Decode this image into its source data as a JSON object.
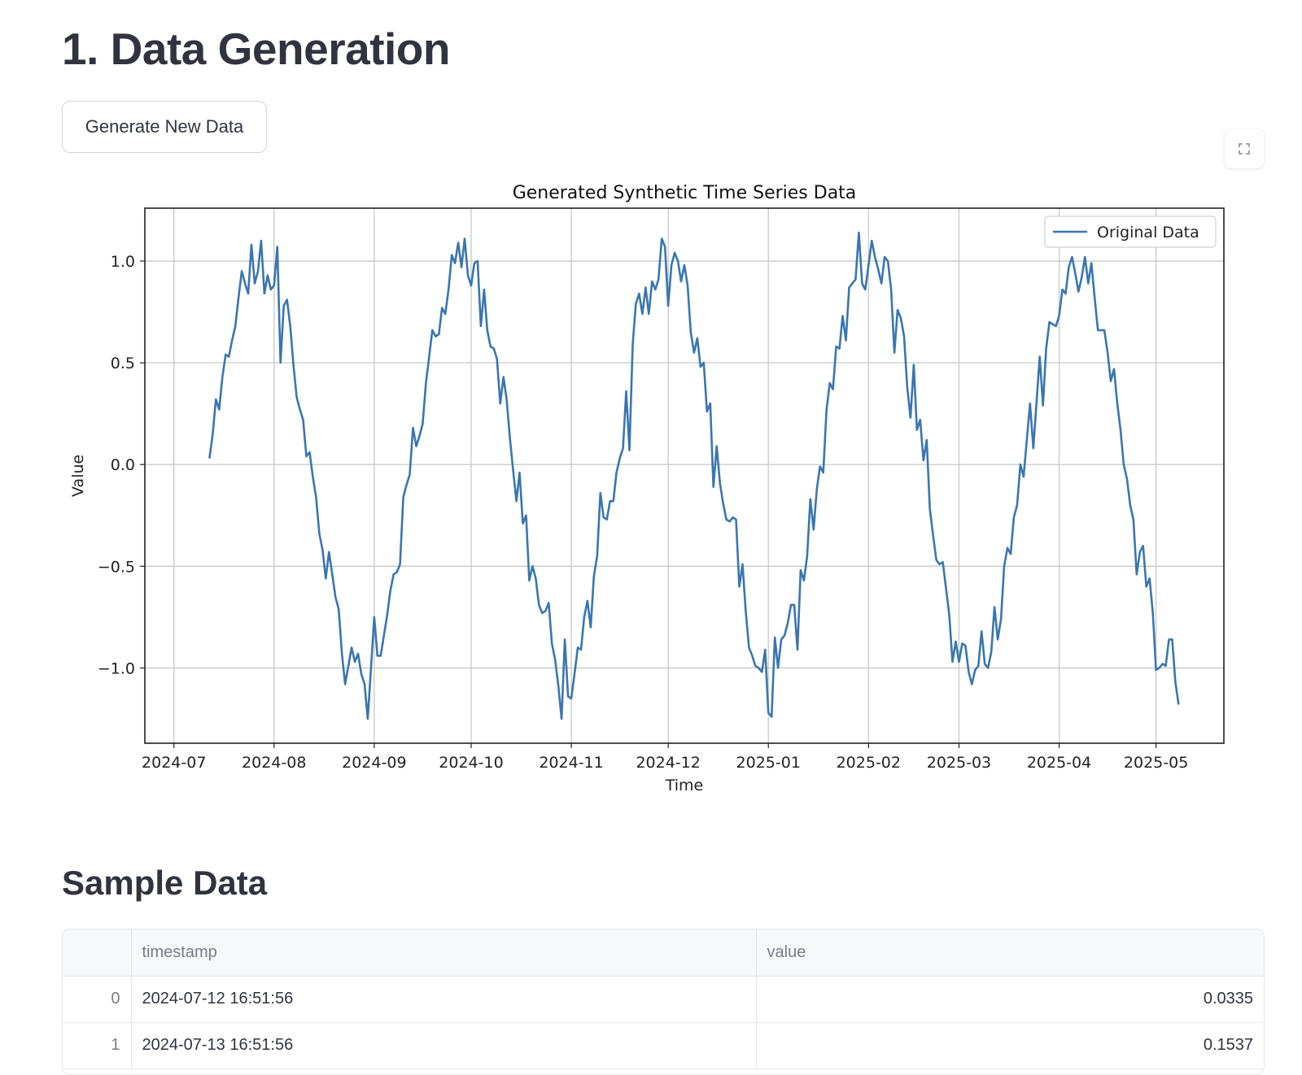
{
  "page": {
    "title": "1. Data Generation",
    "generate_button_label": "Generate New Data",
    "fullscreen_icon": "fullscreen-icon",
    "section_title": "Sample Data"
  },
  "chart_data": {
    "type": "line",
    "title": "Generated Synthetic Time Series Data",
    "xlabel": "Time",
    "ylabel": "Value",
    "x_ticks": [
      "2024-07",
      "2024-08",
      "2024-09",
      "2024-10",
      "2024-11",
      "2024-12",
      "2025-01",
      "2025-02",
      "2025-03",
      "2025-04",
      "2025-05"
    ],
    "y_ticks": [
      "1.0",
      "0.5",
      "0.0",
      "−0.5",
      "−1.0"
    ],
    "ylim": [
      -1.37,
      1.26
    ],
    "xlim": [
      "2024-06-22",
      "2025-05-22"
    ],
    "start_date": "2024-07-12",
    "grid": true,
    "legend_position": "top-right",
    "color": "#3a76b0",
    "series": [
      {
        "name": "Original Data",
        "values": [
          0.03,
          0.15,
          0.32,
          0.27,
          0.43,
          0.54,
          0.53,
          0.61,
          0.68,
          0.82,
          0.95,
          0.89,
          0.84,
          1.08,
          0.89,
          0.95,
          1.1,
          0.84,
          0.93,
          0.86,
          0.88,
          1.07,
          0.5,
          0.78,
          0.81,
          0.68,
          0.49,
          0.33,
          0.27,
          0.22,
          0.04,
          0.06,
          -0.06,
          -0.16,
          -0.34,
          -0.42,
          -0.56,
          -0.43,
          -0.54,
          -0.65,
          -0.71,
          -0.93,
          -1.08,
          -0.99,
          -0.9,
          -0.97,
          -0.93,
          -1.03,
          -1.08,
          -1.25,
          -1.0,
          -0.75,
          -0.94,
          -0.94,
          -0.84,
          -0.74,
          -0.62,
          -0.54,
          -0.53,
          -0.49,
          -0.16,
          -0.1,
          -0.05,
          0.18,
          0.09,
          0.14,
          0.2,
          0.4,
          0.53,
          0.66,
          0.63,
          0.64,
          0.77,
          0.74,
          0.86,
          1.03,
          0.99,
          1.09,
          0.97,
          1.11,
          0.93,
          0.88,
          0.99,
          1.0,
          0.68,
          0.86,
          0.66,
          0.58,
          0.57,
          0.52,
          0.3,
          0.43,
          0.32,
          0.13,
          -0.03,
          -0.18,
          -0.04,
          -0.29,
          -0.25,
          -0.57,
          -0.5,
          -0.56,
          -0.69,
          -0.73,
          -0.72,
          -0.68,
          -0.88,
          -0.96,
          -1.09,
          -1.25,
          -0.86,
          -1.14,
          -1.15,
          -1.03,
          -0.9,
          -0.91,
          -0.75,
          -0.67,
          -0.8,
          -0.55,
          -0.45,
          -0.14,
          -0.26,
          -0.27,
          -0.18,
          -0.18,
          -0.04,
          0.03,
          0.08,
          0.36,
          0.07,
          0.59,
          0.79,
          0.84,
          0.74,
          0.87,
          0.74,
          0.9,
          0.86,
          0.91,
          1.11,
          1.07,
          0.78,
          0.98,
          1.04,
          1.0,
          0.9,
          0.98,
          0.88,
          0.65,
          0.55,
          0.62,
          0.48,
          0.5,
          0.26,
          0.3,
          -0.11,
          0.09,
          -0.09,
          -0.19,
          -0.27,
          -0.28,
          -0.26,
          -0.27,
          -0.6,
          -0.49,
          -0.72,
          -0.9,
          -0.94,
          -0.99,
          -1.0,
          -1.02,
          -0.91,
          -1.22,
          -1.24,
          -0.85,
          -1.0,
          -0.86,
          -0.84,
          -0.78,
          -0.69,
          -0.69,
          -0.91,
          -0.52,
          -0.57,
          -0.45,
          -0.17,
          -0.32,
          -0.12,
          -0.01,
          -0.04,
          0.27,
          0.4,
          0.37,
          0.58,
          0.57,
          0.73,
          0.61,
          0.87,
          0.89,
          0.91,
          1.14,
          0.89,
          0.86,
          0.98,
          1.1,
          1.02,
          0.96,
          0.89,
          1.02,
          1.0,
          0.86,
          0.55,
          0.76,
          0.72,
          0.63,
          0.38,
          0.23,
          0.49,
          0.17,
          0.22,
          0.02,
          0.12,
          -0.22,
          -0.35,
          -0.47,
          -0.49,
          -0.48,
          -0.61,
          -0.74,
          -0.97,
          -0.87,
          -0.97,
          -0.88,
          -0.89,
          -1.02,
          -1.08,
          -1.01,
          -0.99,
          -0.82,
          -0.98,
          -1.0,
          -0.92,
          -0.7,
          -0.86,
          -0.76,
          -0.5,
          -0.41,
          -0.44,
          -0.26,
          -0.2,
          0.0,
          -0.06,
          0.12,
          0.3,
          0.08,
          0.3,
          0.53,
          0.29,
          0.57,
          0.7,
          0.69,
          0.68,
          0.73,
          0.86,
          0.84,
          0.97,
          1.02,
          0.94,
          0.85,
          0.92,
          1.02,
          0.89,
          0.99,
          0.82,
          0.66,
          0.66,
          0.66,
          0.55,
          0.41,
          0.47,
          0.3,
          0.17,
          0.0,
          -0.07,
          -0.2,
          -0.27,
          -0.54,
          -0.43,
          -0.4,
          -0.6,
          -0.56,
          -0.73,
          -1.01,
          -1.0,
          -0.98,
          -0.99,
          -0.86,
          -0.86,
          -1.07,
          -1.18
        ]
      }
    ]
  },
  "table": {
    "columns": [
      "timestamp",
      "value"
    ],
    "rows": [
      {
        "index": "0",
        "timestamp": "2024-07-12 16:51:56",
        "value": "0.0335"
      },
      {
        "index": "1",
        "timestamp": "2024-07-13 16:51:56",
        "value": "0.1537"
      }
    ]
  }
}
